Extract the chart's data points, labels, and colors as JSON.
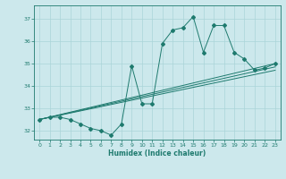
{
  "xlabel": "Humidex (Indice chaleur)",
  "bg_color": "#cce8ec",
  "line_color": "#1e7a6e",
  "grid_color": "#aad4d8",
  "xlim": [
    -0.5,
    23.5
  ],
  "ylim": [
    31.6,
    37.6
  ],
  "yticks": [
    32,
    33,
    34,
    35,
    36,
    37
  ],
  "xticks": [
    0,
    1,
    2,
    3,
    4,
    5,
    6,
    7,
    8,
    9,
    10,
    11,
    12,
    13,
    14,
    15,
    16,
    17,
    18,
    19,
    20,
    21,
    22,
    23
  ],
  "series": [
    [
      0,
      32.5
    ],
    [
      1,
      32.6
    ],
    [
      2,
      32.6
    ],
    [
      3,
      32.5
    ],
    [
      4,
      32.3
    ],
    [
      5,
      32.1
    ],
    [
      6,
      32.0
    ],
    [
      7,
      31.8
    ],
    [
      8,
      32.3
    ],
    [
      9,
      34.9
    ],
    [
      10,
      33.2
    ],
    [
      11,
      33.2
    ],
    [
      12,
      35.9
    ],
    [
      13,
      36.5
    ],
    [
      14,
      36.6
    ],
    [
      15,
      37.1
    ],
    [
      16,
      35.5
    ],
    [
      17,
      36.7
    ],
    [
      18,
      36.7
    ],
    [
      19,
      35.5
    ],
    [
      20,
      35.2
    ],
    [
      21,
      34.7
    ],
    [
      22,
      34.8
    ],
    [
      23,
      35.0
    ]
  ],
  "trend_lines": [
    [
      [
        0,
        23
      ],
      [
        32.5,
        35.0
      ]
    ],
    [
      [
        0,
        23
      ],
      [
        32.5,
        34.85
      ]
    ],
    [
      [
        0,
        23
      ],
      [
        32.5,
        34.7
      ]
    ]
  ]
}
